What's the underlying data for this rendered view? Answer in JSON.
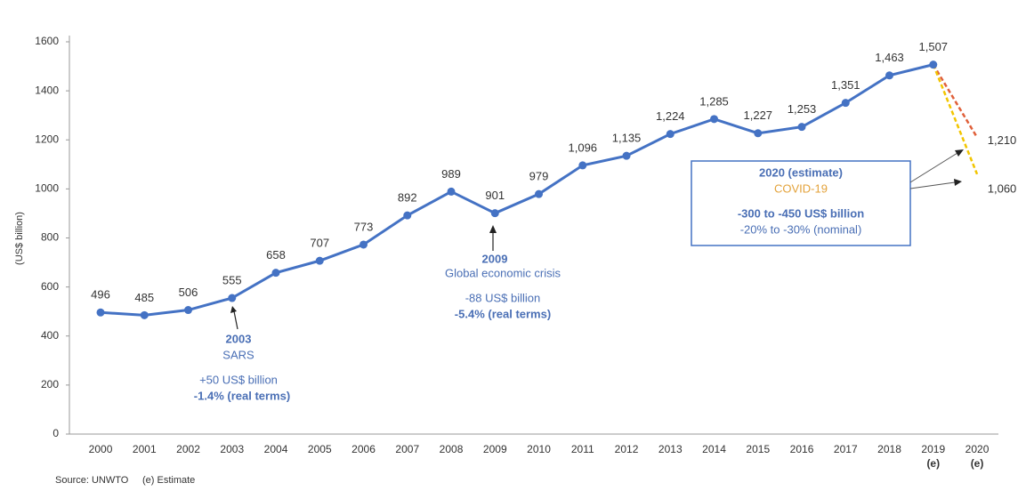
{
  "chart_data": {
    "type": "line",
    "y_label": "(US$ billion)",
    "categories": [
      "2000",
      "2001",
      "2002",
      "2003",
      "2004",
      "2005",
      "2006",
      "2007",
      "2008",
      "2009",
      "2010",
      "2011",
      "2012",
      "2013",
      "2014",
      "2015",
      "2016",
      "2017",
      "2018",
      "2019",
      "2020"
    ],
    "category_notes": [
      null,
      null,
      null,
      null,
      null,
      null,
      null,
      null,
      null,
      null,
      null,
      null,
      null,
      null,
      null,
      null,
      null,
      null,
      null,
      "(e)",
      "(e)"
    ],
    "series": [
      {
        "color": "#4472c4",
        "dashed": false,
        "markers": true,
        "values": [
          496,
          485,
          506,
          555,
          658,
          707,
          773,
          892,
          989,
          901,
          979,
          1096,
          1135,
          1224,
          1285,
          1227,
          1253,
          1351,
          1463,
          1507,
          null
        ],
        "value_labels": [
          "496",
          "485",
          "506",
          "555",
          "658",
          "707",
          "773",
          "892",
          "989",
          "901",
          "979",
          "1,096",
          "1,135",
          "1,224",
          "1,285",
          "1,227",
          "1,253",
          "1,351",
          "1,463",
          "1,507",
          null
        ]
      },
      {
        "color": "#e0603a",
        "dashed": true,
        "markers": false,
        "values": [
          null,
          null,
          null,
          null,
          null,
          null,
          null,
          null,
          null,
          null,
          null,
          null,
          null,
          null,
          null,
          null,
          null,
          null,
          null,
          1507,
          1210
        ],
        "value_labels": [
          null,
          null,
          null,
          null,
          null,
          null,
          null,
          null,
          null,
          null,
          null,
          null,
          null,
          null,
          null,
          null,
          null,
          null,
          null,
          null,
          "1,210"
        ]
      },
      {
        "color": "#f2c500",
        "dashed": true,
        "markers": false,
        "values": [
          null,
          null,
          null,
          null,
          null,
          null,
          null,
          null,
          null,
          null,
          null,
          null,
          null,
          null,
          null,
          null,
          null,
          null,
          null,
          1507,
          1060
        ],
        "value_labels": [
          null,
          null,
          null,
          null,
          null,
          null,
          null,
          null,
          null,
          null,
          null,
          null,
          null,
          null,
          null,
          null,
          null,
          null,
          null,
          null,
          "1,060"
        ]
      }
    ],
    "ylim": [
      0,
      1600
    ],
    "yticks": [
      0,
      200,
      400,
      600,
      800,
      1000,
      1200,
      1400,
      1600
    ],
    "grid": false,
    "annotations": {
      "sars": [
        "2003",
        "SARS",
        "+50 US$ billion",
        "-1.4% (real terms)"
      ],
      "crisis": [
        "2009",
        "Global economic crisis",
        "-88 US$ billion",
        "-5.4% (real terms)"
      ],
      "covid": [
        "2020 (estimate)",
        "COVID-19",
        "-300 to -450 US$ billion",
        "-20% to -30% (nominal)"
      ]
    },
    "source": "Source: UNWTO",
    "footnote": "(e) Estimate"
  }
}
